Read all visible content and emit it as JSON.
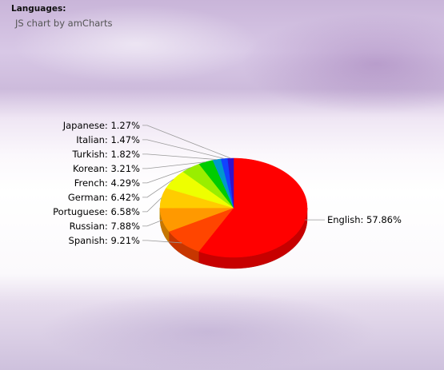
{
  "header": {
    "title": "Languages:",
    "subtitle": "JS chart by amCharts"
  },
  "chart_data": {
    "type": "pie",
    "title": "Languages:",
    "subtitle": "JS chart by amCharts",
    "label_format": "{category}: {value}%",
    "three_d": true,
    "slices": [
      {
        "category": "English",
        "value": 57.86,
        "color": "#ff0000"
      },
      {
        "category": "Spanish",
        "value": 9.21,
        "color": "#ff4500"
      },
      {
        "category": "Russian",
        "value": 7.88,
        "color": "#ff9900"
      },
      {
        "category": "Portuguese",
        "value": 6.58,
        "color": "#ffcc00"
      },
      {
        "category": "German",
        "value": 6.42,
        "color": "#eeff00"
      },
      {
        "category": "French",
        "value": 4.29,
        "color": "#99ee00"
      },
      {
        "category": "Korean",
        "value": 3.21,
        "color": "#00cc00"
      },
      {
        "category": "Turkish",
        "value": 1.82,
        "color": "#0099cc"
      },
      {
        "category": "Italian",
        "value": 1.47,
        "color": "#1144ff"
      },
      {
        "category": "Japanese",
        "value": 1.27,
        "color": "#3311cc"
      }
    ]
  }
}
